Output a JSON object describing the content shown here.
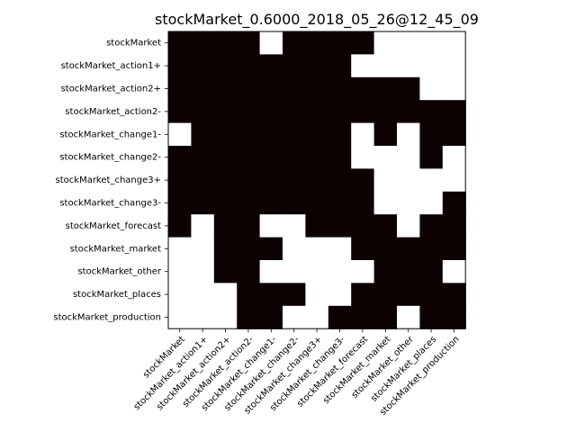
{
  "chart_data": {
    "type": "heatmap",
    "title": "stockMarket_0.6000_2018_05_26@12_45_09",
    "xlabel": "",
    "ylabel": "",
    "colormap": {
      "0": "#ffffff",
      "1": "#0d0202"
    },
    "grid": false,
    "legend": "none",
    "rows": [
      "stockMarket",
      "stockMarket_action1+",
      "stockMarket_action2+",
      "stockMarket_action2-",
      "stockMarket_change1-",
      "stockMarket_change2-",
      "stockMarket_change3+",
      "stockMarket_change3-",
      "stockMarket_forecast",
      "stockMarket_market",
      "stockMarket_other",
      "stockMarket_places",
      "stockMarket_production"
    ],
    "columns": [
      "stockMarket",
      "stockMarket_action1+",
      "stockMarket_action2+",
      "stockMarket_action2-",
      "stockMarket_change1-",
      "stockMarket_change2-",
      "stockMarket_change3+",
      "stockMarket_change3-",
      "stockMarket_forecast",
      "stockMarket_market",
      "stockMarket_other",
      "stockMarket_places",
      "stockMarket_production"
    ],
    "values": [
      [
        1,
        1,
        1,
        1,
        0,
        1,
        1,
        1,
        1,
        0,
        0,
        0,
        0
      ],
      [
        1,
        1,
        1,
        1,
        1,
        1,
        1,
        1,
        0,
        0,
        0,
        0,
        0
      ],
      [
        1,
        1,
        1,
        1,
        1,
        1,
        1,
        1,
        1,
        1,
        1,
        0,
        0
      ],
      [
        1,
        1,
        1,
        1,
        1,
        1,
        1,
        1,
        1,
        1,
        1,
        1,
        1
      ],
      [
        0,
        1,
        1,
        1,
        1,
        1,
        1,
        1,
        0,
        1,
        0,
        1,
        1
      ],
      [
        1,
        1,
        1,
        1,
        1,
        1,
        1,
        1,
        0,
        0,
        0,
        1,
        0
      ],
      [
        1,
        1,
        1,
        1,
        1,
        1,
        1,
        1,
        1,
        0,
        0,
        0,
        0
      ],
      [
        1,
        1,
        1,
        1,
        1,
        1,
        1,
        1,
        1,
        0,
        0,
        0,
        1
      ],
      [
        1,
        0,
        1,
        1,
        0,
        0,
        1,
        1,
        1,
        1,
        0,
        1,
        1
      ],
      [
        0,
        0,
        1,
        1,
        1,
        0,
        0,
        0,
        1,
        1,
        1,
        1,
        1
      ],
      [
        0,
        0,
        1,
        1,
        0,
        0,
        0,
        0,
        0,
        1,
        1,
        1,
        0
      ],
      [
        0,
        0,
        0,
        1,
        1,
        1,
        0,
        0,
        1,
        1,
        1,
        1,
        1
      ],
      [
        0,
        0,
        0,
        1,
        1,
        0,
        0,
        1,
        1,
        1,
        0,
        1,
        1
      ]
    ]
  }
}
